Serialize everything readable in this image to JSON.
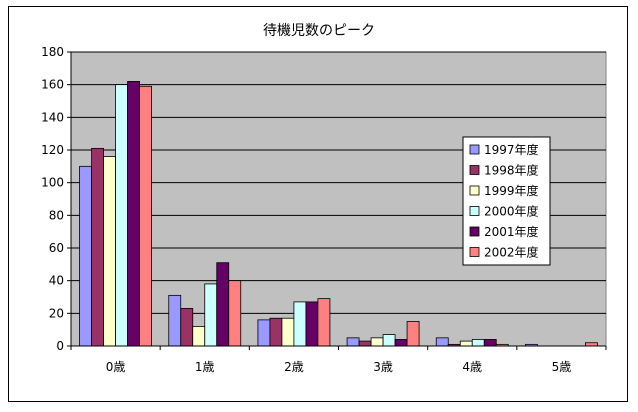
{
  "chart_data": {
    "type": "bar",
    "title": "待機児数のピーク",
    "xlabel": "",
    "ylabel": "",
    "categories": [
      "0歳",
      "1歳",
      "2歳",
      "3歳",
      "4歳",
      "5歳"
    ],
    "ylim": [
      0,
      180
    ],
    "yticks": [
      0,
      20,
      40,
      60,
      80,
      100,
      120,
      140,
      160,
      180
    ],
    "grid": true,
    "legend_position": "right",
    "plot_background": "#c0c0c0",
    "series": [
      {
        "name": "1997年度",
        "color": "#9999ff",
        "values": [
          110,
          31,
          16,
          5,
          5,
          1
        ]
      },
      {
        "name": "1998年度",
        "color": "#993366",
        "values": [
          121,
          23,
          17,
          3,
          1,
          0
        ]
      },
      {
        "name": "1999年度",
        "color": "#ffffcc",
        "values": [
          116,
          12,
          17,
          5,
          3,
          0
        ]
      },
      {
        "name": "2000年度",
        "color": "#ccffff",
        "values": [
          160,
          38,
          27,
          7,
          4,
          0
        ]
      },
      {
        "name": "2001年度",
        "color": "#660066",
        "values": [
          162,
          51,
          27,
          4,
          4,
          0
        ]
      },
      {
        "name": "2002年度",
        "color": "#ff8080",
        "values": [
          159,
          40,
          29,
          15,
          1,
          2
        ]
      }
    ]
  }
}
